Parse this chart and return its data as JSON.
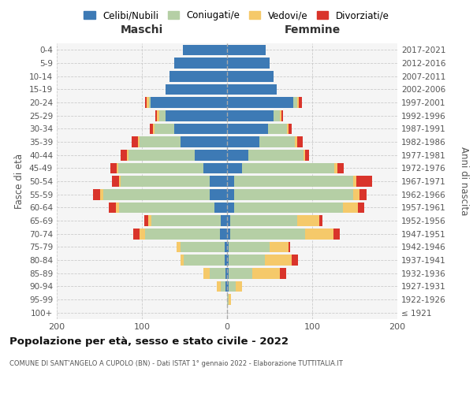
{
  "age_groups": [
    "100+",
    "95-99",
    "90-94",
    "85-89",
    "80-84",
    "75-79",
    "70-74",
    "65-69",
    "60-64",
    "55-59",
    "50-54",
    "45-49",
    "40-44",
    "35-39",
    "30-34",
    "25-29",
    "20-24",
    "15-19",
    "10-14",
    "5-9",
    "0-4"
  ],
  "birth_years": [
    "≤ 1921",
    "1922-1926",
    "1927-1931",
    "1932-1936",
    "1937-1941",
    "1942-1946",
    "1947-1951",
    "1952-1956",
    "1957-1961",
    "1962-1966",
    "1967-1971",
    "1972-1976",
    "1977-1981",
    "1982-1986",
    "1987-1991",
    "1992-1996",
    "1997-2001",
    "2002-2006",
    "2007-2011",
    "2012-2016",
    "2017-2021"
  ],
  "male_celibi": [
    0,
    0,
    2,
    2,
    3,
    3,
    8,
    7,
    15,
    20,
    20,
    28,
    38,
    55,
    62,
    72,
    90,
    72,
    68,
    62,
    52
  ],
  "male_coniugati": [
    0,
    0,
    5,
    18,
    48,
    52,
    88,
    82,
    112,
    125,
    105,
    100,
    78,
    48,
    23,
    8,
    2,
    0,
    0,
    0,
    0
  ],
  "male_vedovi": [
    0,
    0,
    5,
    8,
    4,
    4,
    7,
    4,
    4,
    4,
    2,
    2,
    2,
    2,
    2,
    2,
    2,
    0,
    0,
    0,
    0
  ],
  "male_divorziati": [
    0,
    0,
    0,
    0,
    0,
    0,
    7,
    4,
    8,
    8,
    8,
    7,
    7,
    7,
    4,
    2,
    2,
    0,
    0,
    0,
    0
  ],
  "female_nubili": [
    0,
    0,
    2,
    2,
    2,
    2,
    4,
    4,
    8,
    8,
    8,
    18,
    25,
    38,
    48,
    55,
    78,
    58,
    55,
    50,
    45
  ],
  "female_coniugate": [
    0,
    2,
    8,
    28,
    42,
    48,
    88,
    78,
    128,
    140,
    140,
    108,
    65,
    42,
    22,
    7,
    4,
    0,
    0,
    0,
    0
  ],
  "female_vedove": [
    0,
    3,
    8,
    32,
    32,
    22,
    33,
    26,
    18,
    8,
    4,
    4,
    2,
    2,
    2,
    2,
    2,
    0,
    0,
    0,
    0
  ],
  "female_divorziate": [
    0,
    0,
    0,
    7,
    7,
    2,
    7,
    4,
    7,
    8,
    18,
    7,
    4,
    7,
    4,
    2,
    4,
    0,
    0,
    0,
    0
  ],
  "colors": {
    "celibi": "#3d7ab5",
    "coniugati": "#b5cfa5",
    "vedovi": "#f5c96a",
    "divorziati": "#d9342b"
  },
  "xlim": 200,
  "title": "Popolazione per età, sesso e stato civile - 2022",
  "subtitle": "COMUNE DI SANT'ANGELO A CUPOLO (BN) - Dati ISTAT 1° gennaio 2022 - Elaborazione TUTTITALIA.IT",
  "ylabel": "Fasce di età",
  "ylabel_right": "Anni di nascita",
  "label_maschi": "Maschi",
  "label_femmine": "Femmine",
  "legend_labels": [
    "Celibi/Nubili",
    "Coniugati/e",
    "Vedovi/e",
    "Divorziati/e"
  ],
  "background_color": "#ffffff",
  "grid_color": "#cccccc",
  "axes_bg": "#f5f5f5"
}
